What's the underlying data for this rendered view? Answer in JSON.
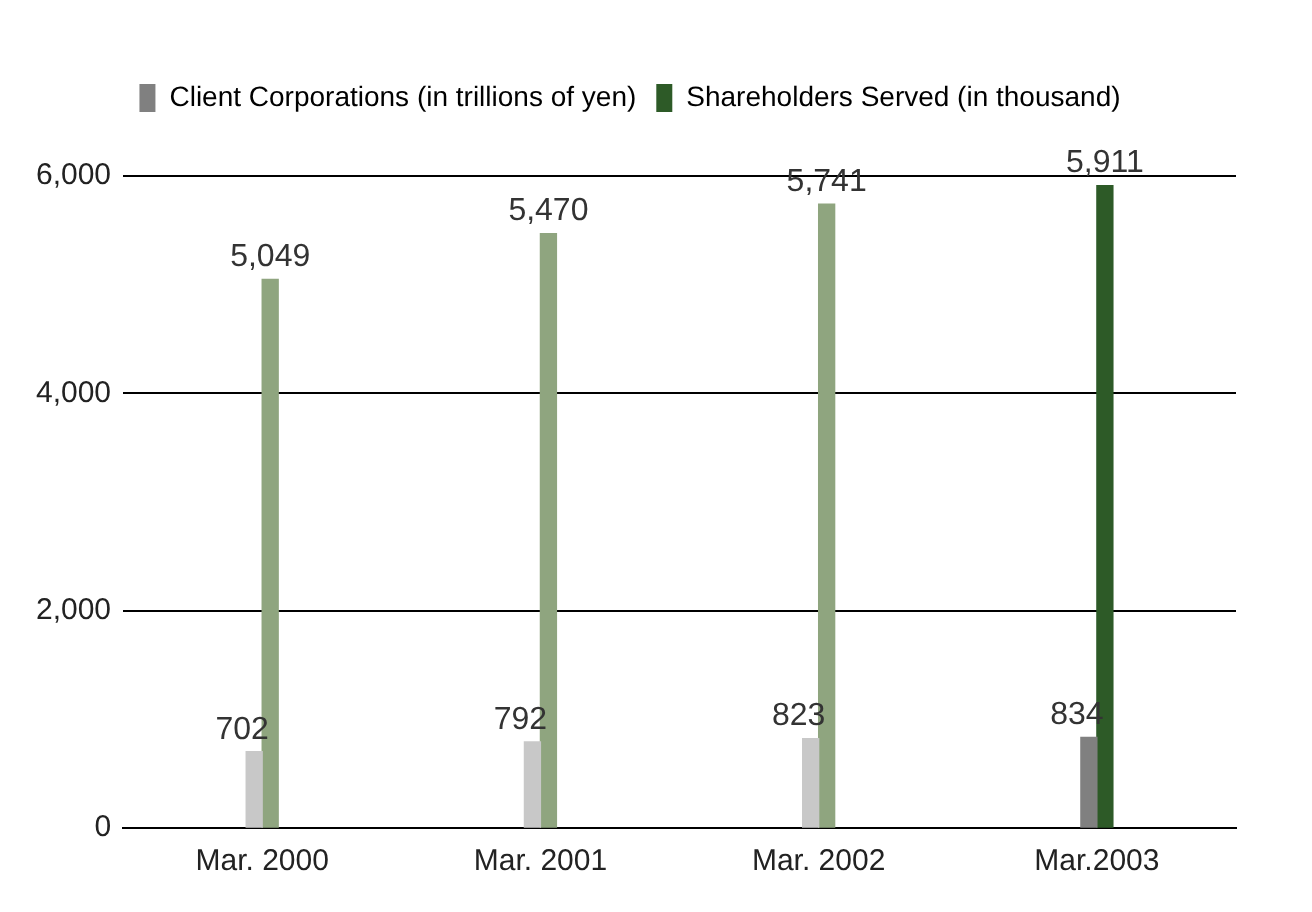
{
  "chart_data": {
    "type": "bar",
    "categories": [
      "Mar. 2000",
      "Mar. 2001",
      "Mar. 2002",
      "Mar.2003"
    ],
    "series": [
      {
        "name": "Client Corporations (in trillions of yen)",
        "color": "#808080",
        "colors": [
          "#c8c8c8",
          "#c8c8c8",
          "#c8c8c8",
          "#808080"
        ],
        "values": [
          702,
          792,
          823,
          834
        ],
        "value_labels": [
          "702",
          "792",
          "823",
          "834"
        ]
      },
      {
        "name": "Shareholders Served (in thousand)",
        "color": "#2d5a27",
        "colors": [
          "#8fa57f",
          "#8fa57f",
          "#8fa57f",
          "#2d5a27"
        ],
        "values": [
          5049,
          5470,
          5741,
          5911
        ],
        "value_labels": [
          "5,049",
          "5,470",
          "5,741",
          "5,911"
        ]
      }
    ],
    "ylim": [
      0,
      6000
    ],
    "yticks": [
      {
        "value": 0,
        "label": "0"
      },
      {
        "value": 2000,
        "label": "2,000"
      },
      {
        "value": 4000,
        "label": "4,000"
      },
      {
        "value": 6000,
        "label": "6,000"
      }
    ],
    "grid": "y",
    "legend": "top"
  }
}
